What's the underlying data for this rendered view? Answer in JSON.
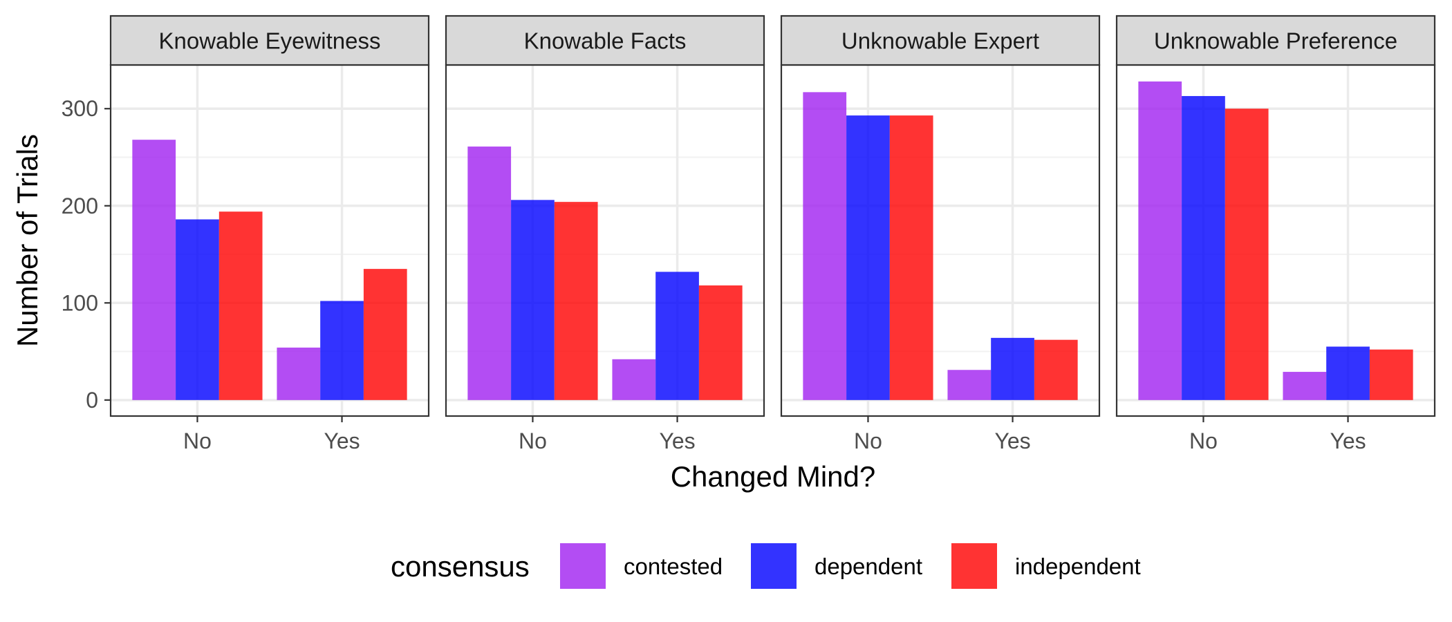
{
  "chart_data": {
    "type": "bar",
    "facets": [
      "Knowable Eyewitness",
      "Knowable Facts",
      "Unknowable Expert",
      "Unknowable Preference"
    ],
    "categories": [
      "No",
      "Yes"
    ],
    "series": [
      {
        "name": "contested",
        "color": "#A020F0",
        "values": [
          [
            268,
            54
          ],
          [
            261,
            42
          ],
          [
            317,
            31
          ],
          [
            328,
            29
          ]
        ]
      },
      {
        "name": "dependent",
        "color": "#0000FF",
        "values": [
          [
            186,
            102
          ],
          [
            206,
            132
          ],
          [
            293,
            64
          ],
          [
            313,
            55
          ]
        ]
      },
      {
        "name": "independent",
        "color": "#FF0000",
        "values": [
          [
            194,
            135
          ],
          [
            204,
            118
          ],
          [
            293,
            62
          ],
          [
            300,
            52
          ]
        ]
      }
    ],
    "xlabel": "Changed Mind?",
    "ylabel": "Number of Trials",
    "yticks": [
      0,
      100,
      200,
      300
    ],
    "ylim": [
      -16.5,
      345
    ],
    "legend": {
      "title": "consensus",
      "position": "bottom"
    },
    "grid": true
  }
}
